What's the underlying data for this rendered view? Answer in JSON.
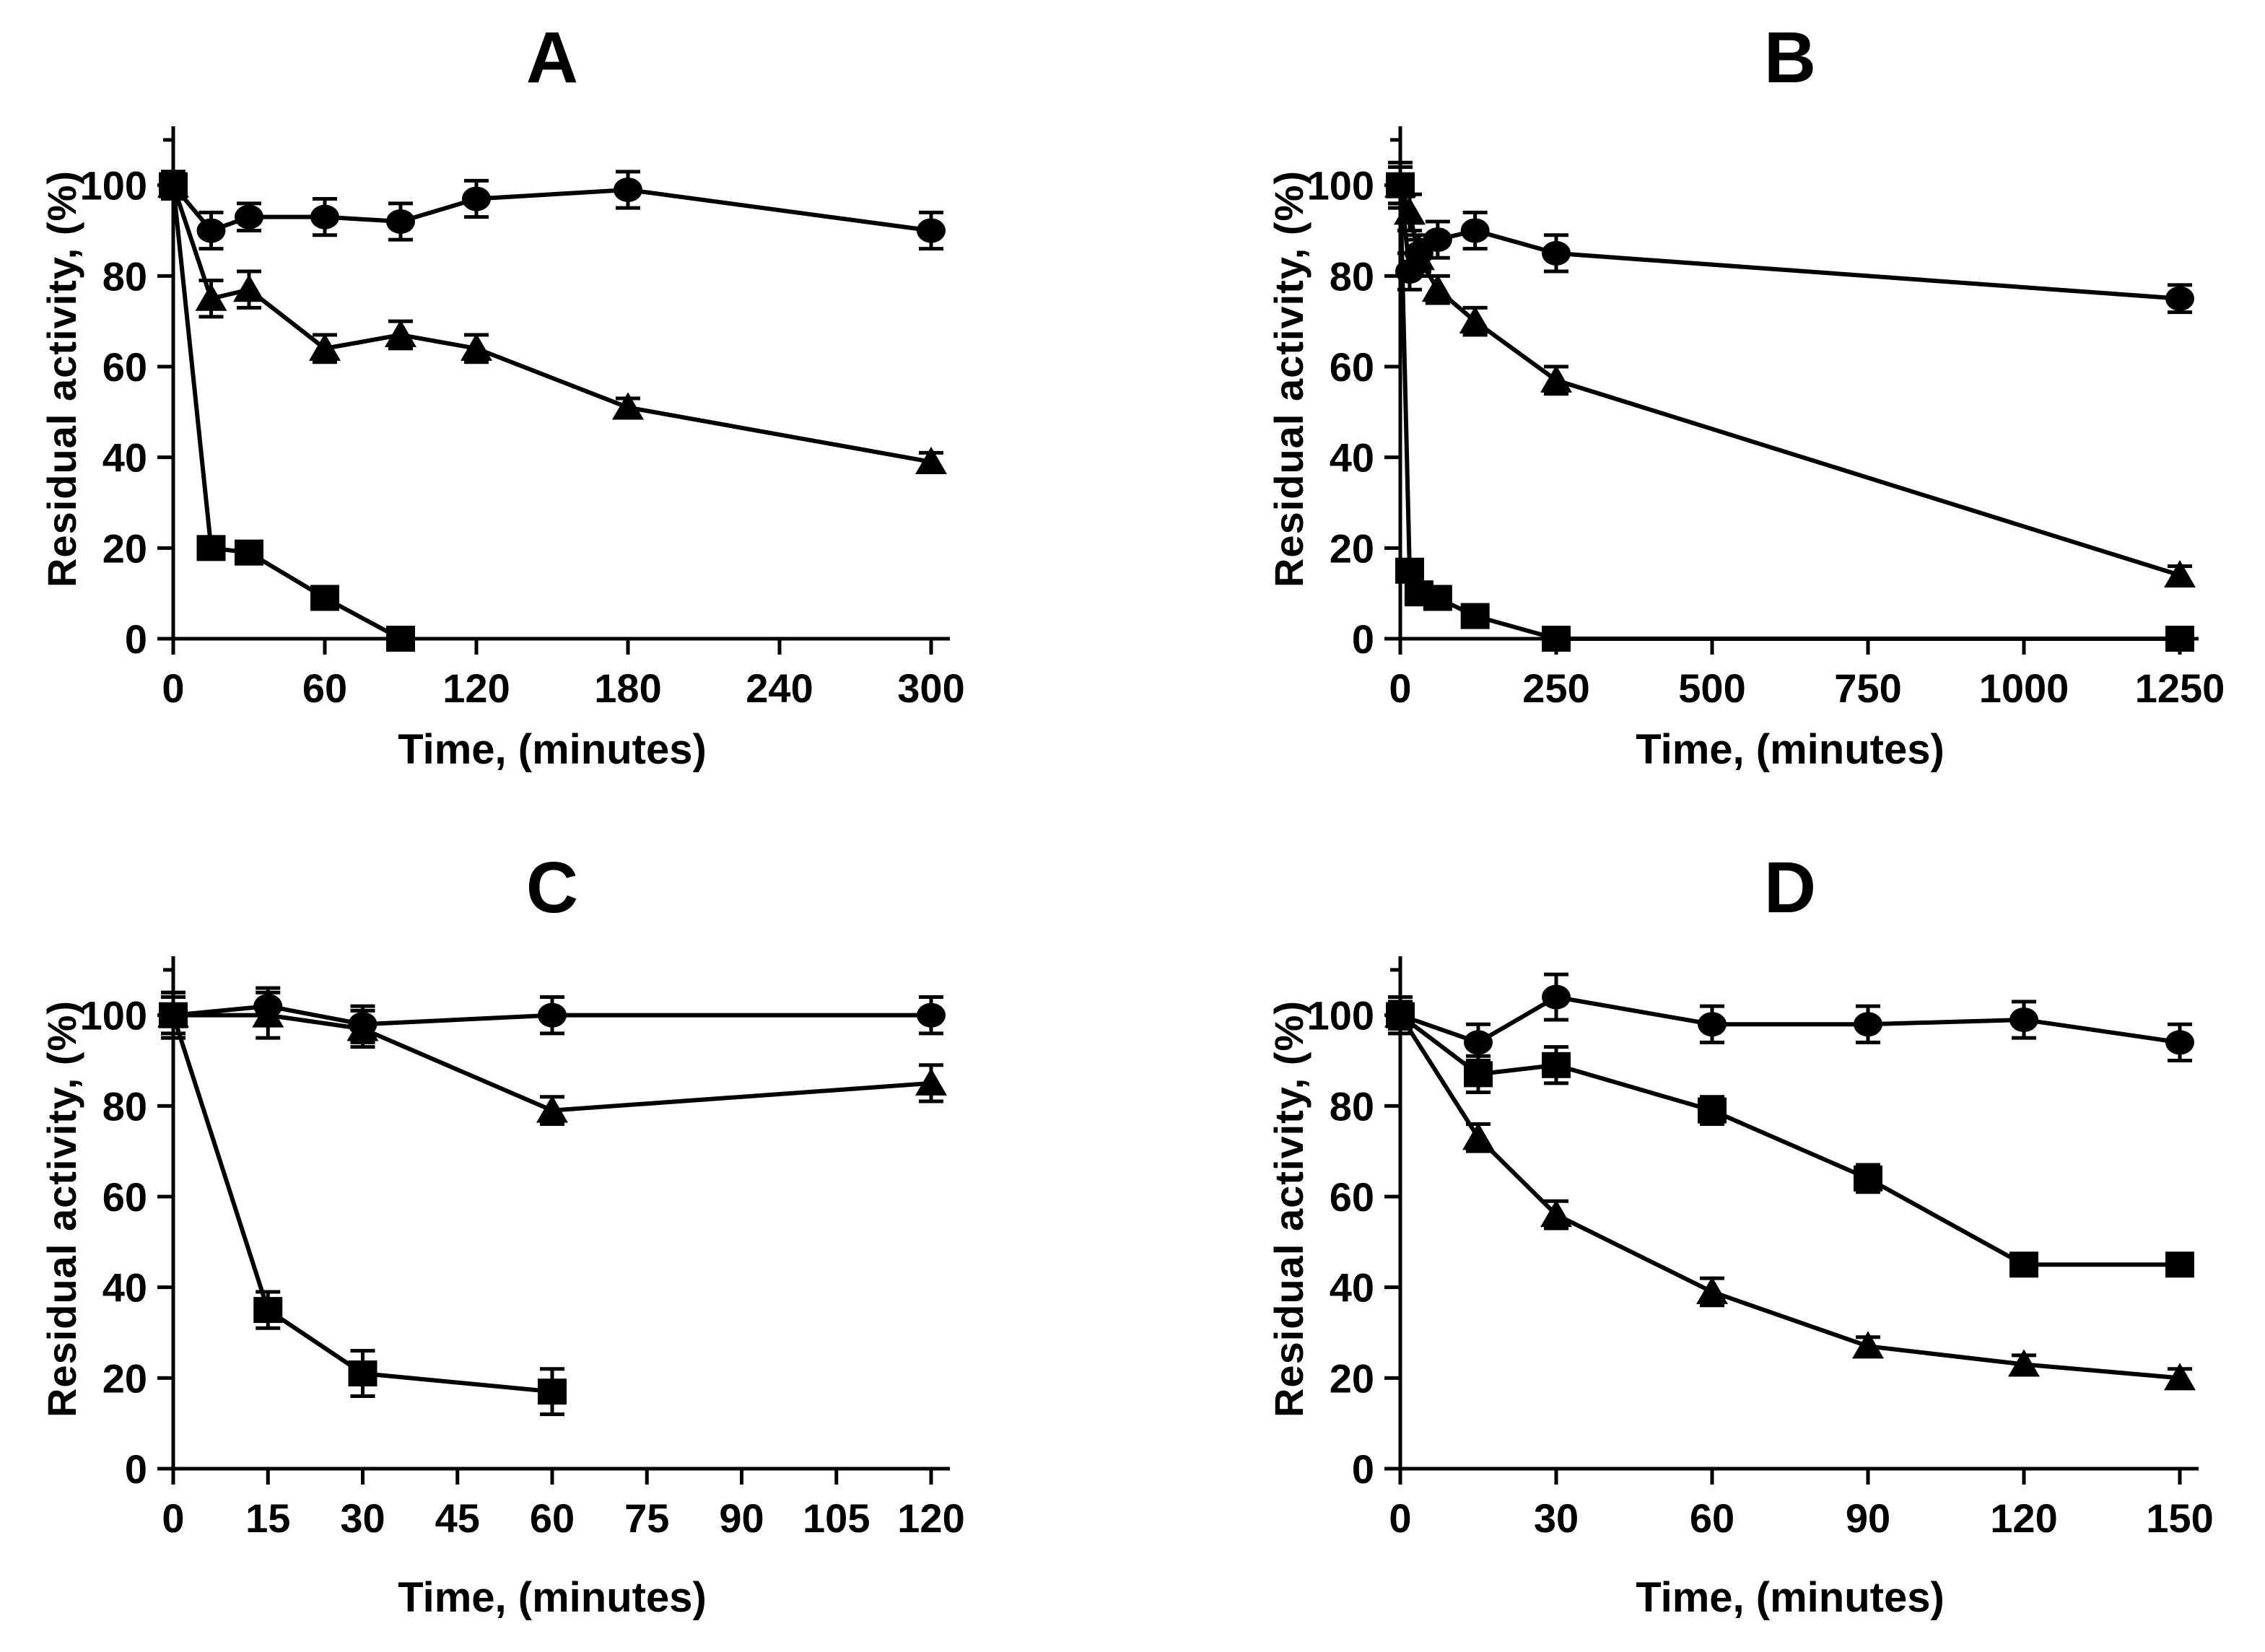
{
  "figure": {
    "background_color": "#ffffff",
    "ink_color": "#000000",
    "description_axes": "Residual activity (%) versus time (minutes), four panels"
  },
  "chart_data": [
    {
      "id": "A",
      "type": "line",
      "title": "A",
      "xlabel": "Time, (minutes)",
      "ylabel": "Residual activity, (%)",
      "xticks": [
        0,
        60,
        120,
        180,
        240,
        300
      ],
      "yticks": [
        0,
        20,
        40,
        60,
        80,
        100
      ],
      "ylim": [
        0,
        113
      ],
      "grid": false,
      "legend": "none",
      "series": [
        {
          "name": "circle-series",
          "marker": "filled-circle",
          "x": [
            0,
            15,
            30,
            60,
            90,
            120,
            180,
            300
          ],
          "y": [
            100,
            90,
            93,
            93,
            92,
            97,
            99,
            90
          ],
          "err": [
            3,
            4,
            3,
            4,
            4,
            4,
            4,
            4
          ]
        },
        {
          "name": "triangle-series",
          "marker": "filled-triangle",
          "x": [
            0,
            15,
            30,
            60,
            90,
            120,
            180,
            300
          ],
          "y": [
            100,
            75,
            77,
            64,
            67,
            64,
            51,
            39
          ],
          "err": [
            3,
            4,
            4,
            3,
            3,
            3,
            2,
            2
          ]
        },
        {
          "name": "square-series",
          "marker": "filled-square",
          "x": [
            0,
            15,
            30,
            60,
            90
          ],
          "y": [
            100,
            20,
            19,
            9,
            0
          ],
          "err": [
            3,
            2,
            2,
            2,
            2
          ]
        }
      ]
    },
    {
      "id": "B",
      "type": "line",
      "title": "B",
      "xlabel": "Time, (minutes)",
      "ylabel": "Residual activity, (%)",
      "xticks": [
        0,
        250,
        500,
        750,
        1000,
        1250
      ],
      "yticks": [
        0,
        20,
        40,
        60,
        80,
        100
      ],
      "ylim": [
        0,
        113
      ],
      "grid": false,
      "legend": "none",
      "series": [
        {
          "name": "circle-series",
          "marker": "filled-circle",
          "x": [
            0,
            15,
            30,
            60,
            120,
            250,
            1250
          ],
          "y": [
            100,
            81,
            85,
            88,
            90,
            85,
            75
          ],
          "err": [
            5,
            4,
            4,
            4,
            4,
            4,
            3
          ]
        },
        {
          "name": "triangle-series",
          "marker": "filled-triangle",
          "x": [
            0,
            15,
            30,
            60,
            120,
            250,
            1250
          ],
          "y": [
            100,
            94,
            84,
            77,
            70,
            57,
            14
          ],
          "err": [
            4,
            4,
            4,
            3,
            3,
            3,
            2
          ]
        },
        {
          "name": "square-series",
          "marker": "filled-square",
          "x": [
            0,
            15,
            30,
            60,
            120,
            250,
            1250
          ],
          "y": [
            100,
            15,
            10,
            9,
            5,
            0,
            0
          ],
          "err": [
            4,
            2,
            2,
            2,
            2,
            1,
            1
          ]
        }
      ]
    },
    {
      "id": "C",
      "type": "line",
      "title": "C",
      "xlabel": "Time, (minutes)",
      "ylabel": "Residual  activity, (%)",
      "xticks": [
        0,
        15,
        30,
        45,
        60,
        75,
        90,
        105,
        120
      ],
      "yticks": [
        0,
        20,
        40,
        60,
        80,
        100
      ],
      "ylim": [
        0,
        113
      ],
      "grid": false,
      "legend": "none",
      "series": [
        {
          "name": "circle-series",
          "marker": "filled-circle",
          "x": [
            0,
            15,
            30,
            60,
            120
          ],
          "y": [
            100,
            102,
            98,
            100,
            100
          ],
          "err": [
            5,
            4,
            4,
            4,
            4
          ]
        },
        {
          "name": "triangle-series",
          "marker": "filled-triangle",
          "x": [
            0,
            15,
            30,
            60,
            120
          ],
          "y": [
            100,
            100,
            97,
            79,
            85
          ],
          "err": [
            4,
            5,
            4,
            3,
            4
          ]
        },
        {
          "name": "square-series",
          "marker": "filled-square",
          "x": [
            0,
            15,
            30,
            60
          ],
          "y": [
            100,
            35,
            21,
            17
          ],
          "err": [
            5,
            4,
            5,
            5
          ]
        }
      ]
    },
    {
      "id": "D",
      "type": "line",
      "title": "D",
      "xlabel": "Time, (minutes)",
      "ylabel": "Residual activity, (%)",
      "xticks": [
        0,
        30,
        60,
        90,
        120,
        150
      ],
      "yticks": [
        0,
        20,
        40,
        60,
        80,
        100
      ],
      "ylim": [
        0,
        113
      ],
      "grid": false,
      "legend": "none",
      "series": [
        {
          "name": "circle-series",
          "marker": "filled-circle",
          "x": [
            0,
            15,
            30,
            60,
            90,
            120,
            150
          ],
          "y": [
            100,
            94,
            104,
            98,
            98,
            99,
            94
          ],
          "err": [
            4,
            4,
            5,
            4,
            4,
            4,
            4
          ]
        },
        {
          "name": "triangle-series",
          "marker": "filled-triangle",
          "x": [
            0,
            15,
            30,
            60,
            90,
            120,
            150
          ],
          "y": [
            100,
            73,
            56,
            39,
            27,
            23,
            20
          ],
          "err": [
            3,
            3,
            3,
            3,
            2,
            2,
            2
          ]
        },
        {
          "name": "square-series",
          "marker": "filled-square",
          "x": [
            0,
            15,
            30,
            60,
            90,
            120,
            150
          ],
          "y": [
            100,
            87,
            89,
            79,
            64,
            45,
            45
          ],
          "err": [
            4,
            4,
            4,
            3,
            3,
            2,
            2
          ]
        }
      ]
    }
  ]
}
